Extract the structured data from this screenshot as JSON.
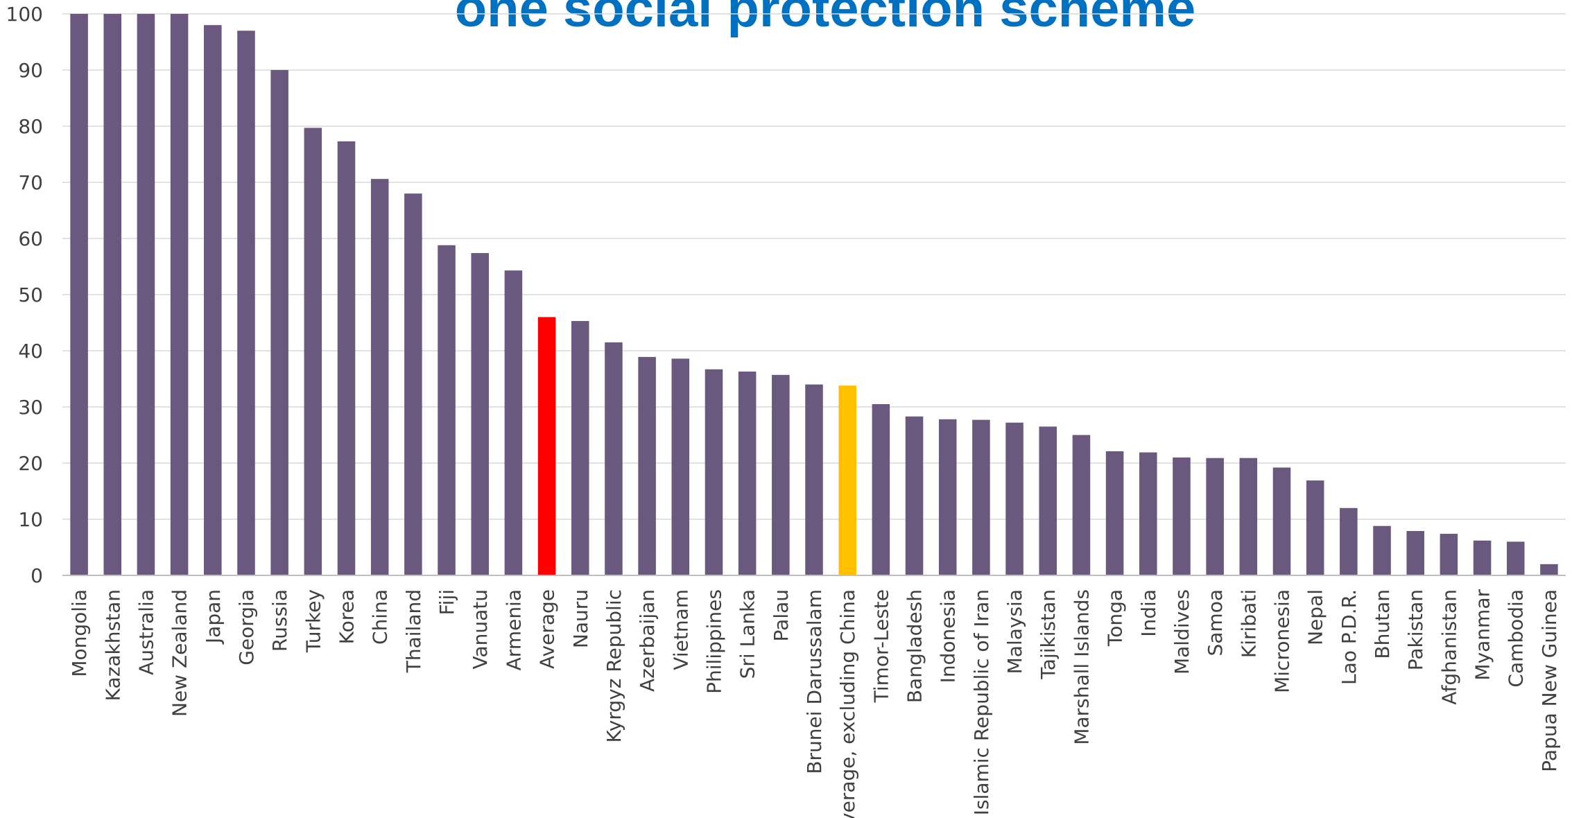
{
  "chart_data": {
    "type": "bar",
    "title": "one social protection scheme",
    "ylim": [
      0,
      100
    ],
    "yticks": [
      0,
      10,
      20,
      30,
      40,
      50,
      60,
      70,
      80,
      90,
      100
    ],
    "grid": true,
    "categories": [
      "Mongolia",
      "Kazakhstan",
      "Australia",
      "New Zealand",
      "Japan",
      "Georgia",
      "Russia",
      "Turkey",
      "Korea",
      "China",
      "Thailand",
      "Fiji",
      "Vanuatu",
      "Armenia",
      "Average",
      "Nauru",
      "Kyrgyz Republic",
      "Azerbaijan",
      "Vietnam",
      "Philippines",
      "Sri Lanka",
      "Palau",
      "Brunei Darussalam",
      "Average, excluding China",
      "Timor-Leste",
      "Bangladesh",
      "Indonesia",
      "Islamic Republic of Iran",
      "Malaysia",
      "Tajikistan",
      "Marshall Islands",
      "Tonga",
      "India",
      "Maldives",
      "Samoa",
      "Kiribati",
      "Micronesia",
      "Nepal",
      "Lao P.D.R.",
      "Bhutan",
      "Pakistan",
      "Afghanistan",
      "Myanmar",
      "Cambodia",
      "Papua New Guinea"
    ],
    "values": [
      100,
      100,
      100,
      100,
      98,
      97,
      90,
      79.7,
      77.3,
      70.6,
      68,
      58.8,
      57.4,
      54.3,
      46,
      45.3,
      41.5,
      38.9,
      38.6,
      36.7,
      36.3,
      35.7,
      34,
      33.8,
      30.5,
      28.3,
      27.8,
      27.7,
      27.2,
      26.5,
      25,
      22.1,
      21.9,
      21,
      20.9,
      20.9,
      19.2,
      16.9,
      12,
      8.8,
      7.9,
      7.4,
      6.2,
      6,
      2
    ],
    "bar_color": "#6A587E",
    "highlight_colors": {
      "Average": "#FF0000",
      "Average, excluding China": "#FFC000"
    },
    "gridline_color": "#D9D9D9",
    "axis_color": "#BFBFBF"
  }
}
